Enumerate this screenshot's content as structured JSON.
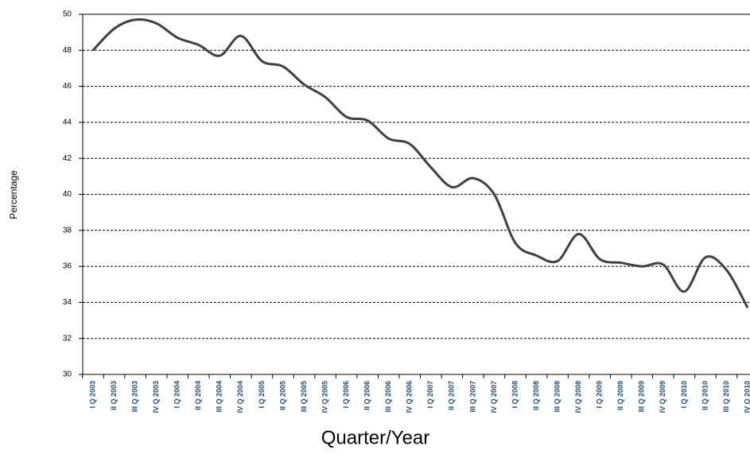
{
  "chart_data": {
    "type": "line",
    "x_label": "Quarter/Year",
    "y_label": "Percentage",
    "categories": [
      "I Q 2003",
      "II Q 2003",
      "III Q 2003",
      "IV Q 2003",
      "I Q 2004",
      "II Q 2004",
      "III Q 2004",
      "IV Q 2004",
      "I Q 2005",
      "II Q 2005",
      "III Q 2005",
      "IV Q 2005",
      "I Q 2006",
      "II Q 2006",
      "III Q 2006",
      "IV Q 2006",
      "I Q 2007",
      "II Q 2007",
      "III Q 2007",
      "IV Q 2007",
      "I Q 2008",
      "II Q 2008",
      "III Q 2008",
      "IV Q 2008",
      "I Q 2009",
      "II Q 2009",
      "III Q 2009",
      "IV Q 2009",
      "I Q 2010",
      "II Q 2010",
      "III Q 2010",
      "IV Q 2010"
    ],
    "values": [
      48.0,
      49.2,
      49.7,
      49.5,
      48.7,
      48.3,
      47.7,
      48.8,
      47.4,
      47.1,
      46.1,
      45.4,
      44.3,
      44.1,
      43.1,
      42.8,
      41.5,
      40.4,
      40.9,
      40.0,
      37.3,
      36.6,
      36.3,
      37.8,
      36.4,
      36.2,
      36.0,
      36.1,
      34.6,
      36.5,
      35.8,
      33.7
    ],
    "color": "#404040",
    "ylim": [
      30,
      50
    ],
    "yticks": [
      30,
      32,
      34,
      36,
      38,
      40,
      42,
      44,
      46,
      48,
      50
    ],
    "grid": true
  }
}
